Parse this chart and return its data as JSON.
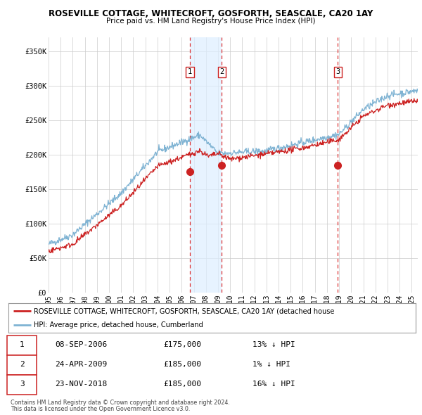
{
  "title": "ROSEVILLE COTTAGE, WHITECROFT, GOSFORTH, SEASCALE, CA20 1AY",
  "subtitle": "Price paid vs. HM Land Registry's House Price Index (HPI)",
  "ylabel_ticks": [
    "£0",
    "£50K",
    "£100K",
    "£150K",
    "£200K",
    "£250K",
    "£300K",
    "£350K"
  ],
  "ytick_values": [
    0,
    50000,
    100000,
    150000,
    200000,
    250000,
    300000,
    350000
  ],
  "ylim": [
    0,
    370000
  ],
  "xlim_start": 1995.0,
  "xlim_end": 2025.5,
  "purchase_dates": [
    2006.69,
    2009.32,
    2018.9
  ],
  "purchase_prices": [
    175000,
    185000,
    185000
  ],
  "purchase_labels": [
    "1",
    "2",
    "3"
  ],
  "hpi_line_color": "#7fb3d3",
  "price_line_color": "#cc2222",
  "vline_color": "#dd3333",
  "marker_color": "#cc2222",
  "shade_color": "#ddeeff",
  "legend_house_label": "ROSEVILLE COTTAGE, WHITECROFT, GOSFORTH, SEASCALE, CA20 1AY (detached house",
  "legend_hpi_label": "HPI: Average price, detached house, Cumberland",
  "table_rows": [
    [
      "1",
      "08-SEP-2006",
      "£175,000",
      "13% ↓ HPI"
    ],
    [
      "2",
      "24-APR-2009",
      "£185,000",
      "1% ↓ HPI"
    ],
    [
      "3",
      "23-NOV-2018",
      "£185,000",
      "16% ↓ HPI"
    ]
  ],
  "footnote1": "Contains HM Land Registry data © Crown copyright and database right 2024.",
  "footnote2": "This data is licensed under the Open Government Licence v3.0.",
  "background_color": "#ffffff",
  "grid_color": "#cccccc"
}
